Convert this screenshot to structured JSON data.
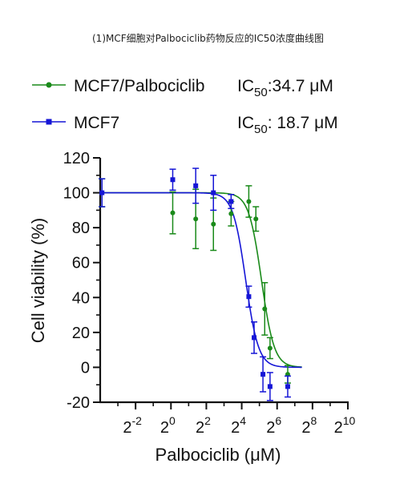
{
  "title": "(1)MCF细胞对Palbociclib药物反应的IC50浓度曲线图",
  "colors": {
    "green": "#1a8a1a",
    "blue": "#1515d6",
    "axis": "#111111"
  },
  "legend": [
    {
      "series": "MCF7/Palbociclib",
      "ic50_prefix": "IC",
      "ic50_sub": "50",
      "ic50_value": ":34.7 μM",
      "color": "#1a8a1a",
      "marker": "circle"
    },
    {
      "series": "MCF7",
      "ic50_prefix": "IC",
      "ic50_sub": "50",
      "ic50_value": ": 18.7 μM",
      "color": "#1515d6",
      "marker": "square"
    }
  ],
  "chart_data": {
    "type": "scatter",
    "title": "(1)MCF细胞对Palbociclib药物反应的IC50浓度曲线图",
    "xlabel": "Palbociclib (μM)",
    "ylabel": "Cell viability (%)",
    "xscale": "log2",
    "xlim_log2": [
      -4,
      10
    ],
    "ylim": [
      -20,
      120
    ],
    "x_ticks": [
      {
        "base": "2",
        "exp": "-2",
        "log2": -2
      },
      {
        "base": "2",
        "exp": "0",
        "log2": 0
      },
      {
        "base": "2",
        "exp": "2",
        "log2": 2
      },
      {
        "base": "2",
        "exp": "4",
        "log2": 4
      },
      {
        "base": "2",
        "exp": "6",
        "log2": 6
      },
      {
        "base": "2",
        "exp": "8",
        "log2": 8
      },
      {
        "base": "2",
        "exp": "10",
        "log2": 10
      }
    ],
    "y_ticks": [
      -20,
      0,
      20,
      40,
      60,
      80,
      100,
      120
    ],
    "series": [
      {
        "name": "MCF7/Palbociclib",
        "color": "#1a8a1a",
        "marker": "circle",
        "ic50": 34.7,
        "hill": 4,
        "log2_x": [
          -3.9,
          0.1,
          1.4,
          2.4,
          3.4,
          4.4,
          4.8,
          5.3,
          5.6,
          6.6
        ],
        "y": [
          100,
          88.5,
          85,
          82,
          88,
          95,
          85,
          33.5,
          11,
          -4
        ],
        "error": [
          8,
          12,
          17,
          15,
          7,
          9,
          7,
          15,
          6,
          5
        ]
      },
      {
        "name": "MCF7",
        "color": "#1515d6",
        "marker": "square",
        "ic50": 18.7,
        "hill": 4,
        "log2_x": [
          -3.9,
          0.1,
          1.4,
          2.4,
          3.4,
          4.4,
          4.7,
          5.2,
          5.6,
          6.6
        ],
        "y": [
          100,
          107.5,
          104,
          100,
          95,
          40.5,
          17,
          -4,
          -11,
          -11
        ],
        "error": [
          8,
          6,
          10,
          10,
          4,
          6,
          9,
          10,
          8,
          6
        ]
      }
    ]
  }
}
